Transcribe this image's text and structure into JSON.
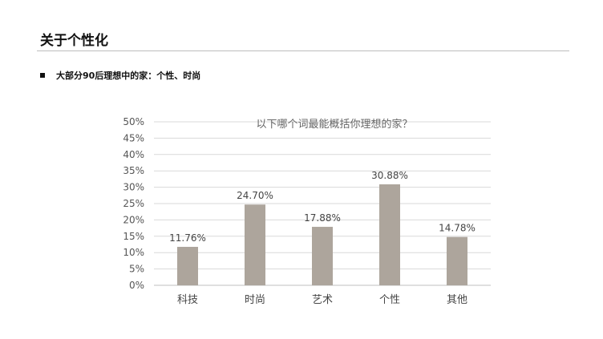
{
  "page": {
    "title": "关于个性化",
    "bullet": "大部分90后理想中的家：个性、时尚"
  },
  "chart_data": {
    "type": "bar",
    "title": "以下哪个词最能概括你理想的家？",
    "categories": [
      "科技",
      "时尚",
      "艺术",
      "个性",
      "其他"
    ],
    "values": [
      11.76,
      24.7,
      17.88,
      30.88,
      14.78
    ],
    "data_labels": [
      "11.76%",
      "24.70%",
      "17.88%",
      "30.88%",
      "14.78%"
    ],
    "ylim": [
      0,
      50
    ],
    "yticks": [
      "0%",
      "5%",
      "10%",
      "15%",
      "20%",
      "25%",
      "30%",
      "35%",
      "40%",
      "45%",
      "50%"
    ],
    "grid": true,
    "bar_color": "#ada59c"
  }
}
